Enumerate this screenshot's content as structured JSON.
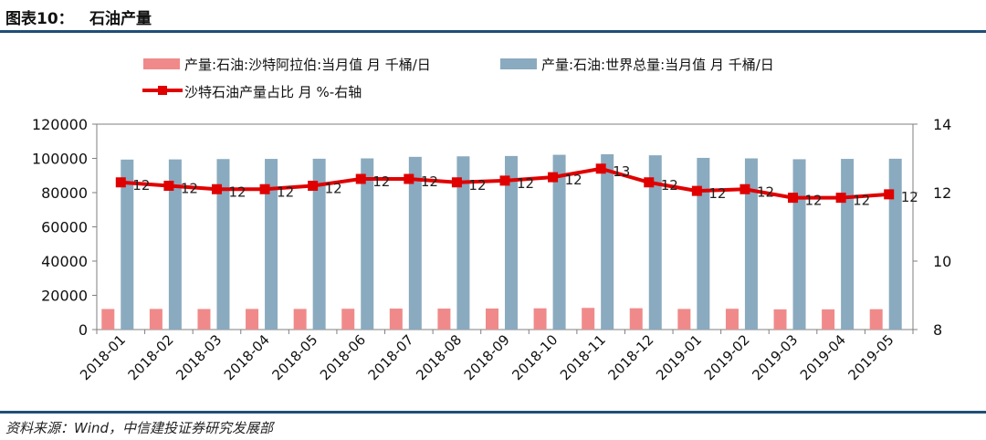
{
  "header": {
    "figure_label": "图表10：",
    "figure_title": "石油产量"
  },
  "source": "资料来源：Wind，中信建投证券研究发展部",
  "colors": {
    "saudi_bar": "#f08a8a",
    "world_bar": "#8aaabf",
    "share_line": "#e00000",
    "rule": "#1f4e79"
  },
  "chart_data": {
    "type": "bar",
    "categories": [
      "2018-01",
      "2018-02",
      "2018-03",
      "2018-04",
      "2018-05",
      "2018-06",
      "2018-07",
      "2018-08",
      "2018-09",
      "2018-10",
      "2018-11",
      "2018-12",
      "2019-01",
      "2019-02",
      "2019-03",
      "2019-04",
      "2019-05"
    ],
    "series": [
      {
        "name": "产量:石油:沙特阿拉伯:当月值 月 千桶/日",
        "type": "bar",
        "axis": "left",
        "values": [
          12000,
          12050,
          12000,
          12050,
          12050,
          12150,
          12250,
          12250,
          12300,
          12400,
          12650,
          12450,
          12050,
          12150,
          11800,
          11800,
          11900
        ]
      },
      {
        "name": "产量:石油:世界总量:当月值 月 千桶/日",
        "type": "bar",
        "axis": "left",
        "values": [
          99300,
          99400,
          99600,
          99700,
          99800,
          100000,
          100900,
          101200,
          101400,
          102100,
          102400,
          101800,
          100300,
          100000,
          99500,
          99700,
          99800
        ]
      },
      {
        "name": "沙特石油产量占比 月 %-右轴",
        "type": "line",
        "axis": "right",
        "values": [
          12.3,
          12.2,
          12.1,
          12.1,
          12.2,
          12.4,
          12.4,
          12.3,
          12.35,
          12.45,
          12.7,
          12.3,
          12.05,
          12.1,
          11.85,
          11.85,
          11.95
        ],
        "data_labels": [
          "12",
          "12",
          "12",
          "12",
          "12",
          "12",
          "12",
          "12",
          "12",
          "12",
          "13",
          "12",
          "12",
          "12",
          "12",
          "12",
          "12"
        ]
      }
    ],
    "y_left": {
      "ylim": [
        0,
        120000
      ],
      "ticks": [
        "0",
        "20000",
        "40000",
        "60000",
        "80000",
        "100000",
        "120000"
      ]
    },
    "y_right": {
      "ylim": [
        8,
        14
      ],
      "ticks": [
        "8",
        "10",
        "12",
        "14"
      ]
    },
    "legend_position": "top",
    "grid": false
  }
}
